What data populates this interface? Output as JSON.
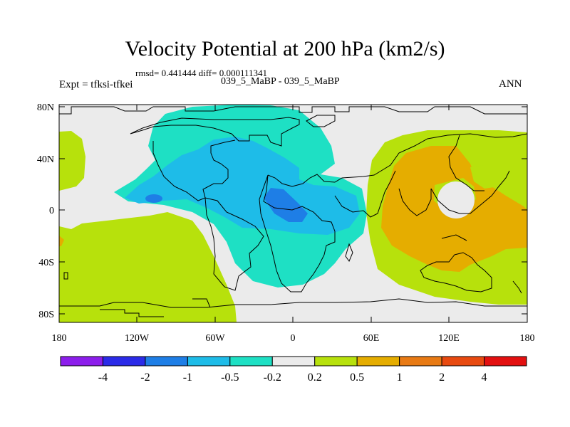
{
  "chart_data": {
    "type": "contour-map",
    "title": "Velocity Potential at 200 hPa (km2/s)",
    "subtitle_stats": "rmsd= 0.441444  diff= 0.000111341",
    "left_label": "Expt = tfksi-tfkei",
    "center_label": "039_5_MaBP - 039_5_MaBP",
    "right_label": "ANN",
    "x_ticks": [
      "180",
      "120W",
      "60W",
      "0",
      "60E",
      "120E",
      "180"
    ],
    "y_ticks": [
      "80N",
      "40N",
      "0",
      "40S",
      "80S"
    ],
    "xlim": [
      -180,
      180
    ],
    "ylim": [
      -90,
      90
    ],
    "colorbar": {
      "labels": [
        "-4",
        "-2",
        "-1",
        "-0.5",
        "-0.2",
        "0.2",
        "0.5",
        "1",
        "2",
        "4"
      ],
      "colors": [
        "#8c1eeb",
        "#2b2be8",
        "#1e7ee6",
        "#1ebce8",
        "#1ee0c4",
        "#ebebeb",
        "#b7e10c",
        "#e5ad00",
        "#e87a14",
        "#e84a10",
        "#e31010"
      ]
    },
    "colors": {
      "background": "#ebebeb",
      "pos1": "#b7e10c",
      "pos2": "#e5ad00",
      "neg1": "#1ee0c4",
      "neg2": "#1ebce8",
      "neg3": "#1e7ee6"
    }
  }
}
